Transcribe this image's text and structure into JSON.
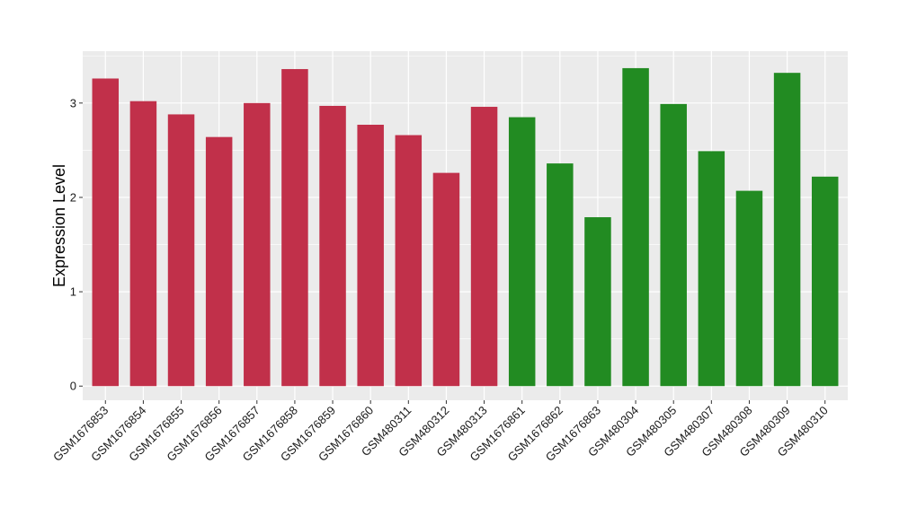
{
  "chart_data": {
    "type": "bar",
    "title": "",
    "xlabel": "",
    "ylabel": "Expression Level",
    "ylim": [
      -0.15,
      3.55
    ],
    "yticks": [
      0,
      1,
      2,
      3
    ],
    "grid": true,
    "categories": [
      "GSM1676853",
      "GSM1676854",
      "GSM1676855",
      "GSM1676856",
      "GSM1676857",
      "GSM1676858",
      "GSM1676859",
      "GSM1676860",
      "GSM480311",
      "GSM480312",
      "GSM480313",
      "GSM1676861",
      "GSM1676862",
      "GSM1676863",
      "GSM480304",
      "GSM480305",
      "GSM480307",
      "GSM480308",
      "GSM480309",
      "GSM480310"
    ],
    "values": [
      3.26,
      3.02,
      2.88,
      2.64,
      3.0,
      3.36,
      2.97,
      2.77,
      2.66,
      2.26,
      2.96,
      2.85,
      2.36,
      1.79,
      3.37,
      2.99,
      2.49,
      2.07,
      3.32,
      2.22
    ],
    "bar_colors": [
      "#c1304a",
      "#c1304a",
      "#c1304a",
      "#c1304a",
      "#c1304a",
      "#c1304a",
      "#c1304a",
      "#c1304a",
      "#c1304a",
      "#c1304a",
      "#c1304a",
      "#228b22",
      "#228b22",
      "#228b22",
      "#228b22",
      "#228b22",
      "#228b22",
      "#228b22",
      "#228b22",
      "#228b22"
    ],
    "panel_background": "#ebebeb",
    "gridline_color": "#ffffff"
  }
}
